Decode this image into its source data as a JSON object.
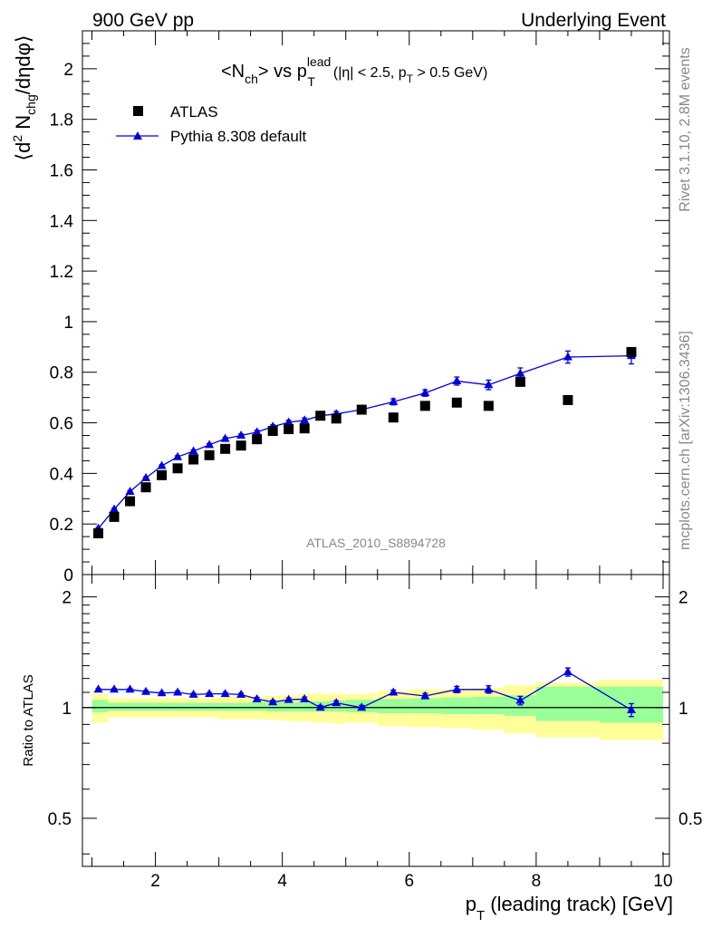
{
  "header": {
    "left": "900 GeV pp",
    "right": "Underlying Event"
  },
  "side_labels": {
    "rivet": "Rivet 3.1.10,  2.8M events",
    "mcplots": "mcplots.cern.ch [arXiv:1306.3436]"
  },
  "watermark": "ATLAS_2010_S8894728",
  "plot_title": {
    "n": "<N",
    "ch": "ch",
    "vs": "> vs p",
    "sup": "lead",
    "sub": "T",
    "cut_a": "(|η| < 2.5, p",
    "cut_b": "T",
    "cut_c": " > 0.5 GeV)"
  },
  "legend": {
    "data": "ATLAS",
    "mc": "Pythia 8.308 default"
  },
  "colors": {
    "data": "#000000",
    "mc": "#0000dd",
    "band_inner": "#99ff99",
    "band_outer": "#ffff99"
  },
  "chart_data": [
    {
      "type": "scatter",
      "panel": "main",
      "xlabel": "p_T (leading track) [GeV]",
      "ylabel": "⟨d² N_chg/dηdφ⟩",
      "xlim": [
        0.85,
        10.1
      ],
      "ylim": [
        0,
        2.15
      ],
      "x_ticks": [
        2,
        4,
        6,
        8,
        10
      ],
      "y_ticks": [
        0,
        0.2,
        0.4,
        0.6,
        0.8,
        1,
        1.2,
        1.4,
        1.6,
        1.8,
        2
      ],
      "y_tick_labels": [
        "0",
        "0.2",
        "0.4",
        "0.6",
        "0.8",
        "1",
        "1.2",
        "1.4",
        "1.6",
        "1.8",
        "2"
      ],
      "series": [
        {
          "name": "ATLAS",
          "x": [
            1.1,
            1.35,
            1.6,
            1.85,
            2.1,
            2.35,
            2.6,
            2.85,
            3.1,
            3.35,
            3.6,
            3.85,
            4.1,
            4.35,
            4.6,
            4.85,
            5.25,
            5.75,
            6.25,
            6.75,
            7.25,
            7.75,
            8.5,
            9.5
          ],
          "y": [
            0.163,
            0.228,
            0.29,
            0.345,
            0.393,
            0.42,
            0.455,
            0.472,
            0.497,
            0.51,
            0.535,
            0.568,
            0.575,
            0.578,
            0.628,
            0.617,
            0.652,
            0.621,
            0.667,
            0.68,
            0.667,
            0.762,
            0.69,
            0.88
          ]
        },
        {
          "name": "Pythia 8.308 default",
          "x": [
            1.1,
            1.35,
            1.6,
            1.85,
            2.1,
            2.35,
            2.6,
            2.85,
            3.1,
            3.35,
            3.6,
            3.85,
            4.1,
            4.35,
            4.6,
            4.85,
            5.25,
            5.75,
            6.25,
            6.75,
            7.25,
            7.75,
            8.5,
            9.5
          ],
          "y": [
            0.182,
            0.258,
            0.328,
            0.382,
            0.43,
            0.465,
            0.488,
            0.513,
            0.537,
            0.55,
            0.563,
            0.585,
            0.602,
            0.61,
            0.628,
            0.635,
            0.652,
            0.683,
            0.718,
            0.765,
            0.75,
            0.795,
            0.86,
            0.865
          ],
          "yerr": [
            0.004,
            0.004,
            0.004,
            0.004,
            0.004,
            0.005,
            0.005,
            0.005,
            0.006,
            0.006,
            0.007,
            0.007,
            0.008,
            0.009,
            0.009,
            0.01,
            0.01,
            0.012,
            0.013,
            0.016,
            0.019,
            0.022,
            0.024,
            0.032
          ]
        }
      ]
    },
    {
      "type": "line",
      "panel": "ratio",
      "ylabel": "Ratio to ATLAS",
      "xlim": [
        0.85,
        10.1
      ],
      "ylim": [
        0.37,
        2.3
      ],
      "y_scale": "log",
      "y_ticks": [
        0.5,
        1,
        2
      ],
      "y_tick_labels": [
        "0.5",
        "1",
        "2"
      ],
      "x_ticks": [
        2,
        4,
        6,
        8,
        10
      ],
      "x_tick_labels": [
        "2",
        "4",
        "6",
        "8",
        "10"
      ],
      "series": [
        {
          "name": "Pythia 8.308 default / ATLAS",
          "x": [
            1.1,
            1.35,
            1.6,
            1.85,
            2.1,
            2.35,
            2.6,
            2.85,
            3.1,
            3.35,
            3.6,
            3.85,
            4.1,
            4.35,
            4.6,
            4.85,
            5.25,
            5.75,
            6.25,
            6.75,
            7.25,
            7.75,
            8.5,
            9.5
          ],
          "y": [
            1.12,
            1.12,
            1.12,
            1.105,
            1.095,
            1.1,
            1.085,
            1.09,
            1.09,
            1.085,
            1.055,
            1.035,
            1.05,
            1.055,
            1.0,
            1.03,
            1.0,
            1.1,
            1.075,
            1.12,
            1.12,
            1.045,
            1.25,
            0.985
          ],
          "yerr": [
            0.008,
            0.008,
            0.008,
            0.008,
            0.008,
            0.009,
            0.009,
            0.009,
            0.01,
            0.01,
            0.011,
            0.011,
            0.012,
            0.013,
            0.013,
            0.014,
            0.014,
            0.016,
            0.018,
            0.022,
            0.026,
            0.028,
            0.032,
            0.04
          ]
        }
      ],
      "bands": {
        "edges": [
          1.0,
          1.25,
          1.5,
          1.75,
          2.0,
          2.25,
          2.5,
          2.75,
          3.0,
          3.25,
          3.5,
          3.75,
          4.0,
          4.25,
          4.5,
          4.75,
          5.0,
          5.5,
          6.0,
          6.5,
          7.0,
          7.5,
          8.0,
          9.0,
          10.0
        ],
        "inner_lo": [
          0.97,
          0.98,
          0.98,
          0.98,
          0.98,
          0.98,
          0.98,
          0.98,
          0.98,
          0.98,
          0.98,
          0.975,
          0.975,
          0.975,
          0.975,
          0.975,
          0.97,
          0.965,
          0.965,
          0.96,
          0.96,
          0.95,
          0.92,
          0.91
        ],
        "inner_hi": [
          1.05,
          1.03,
          1.03,
          1.03,
          1.03,
          1.03,
          1.03,
          1.03,
          1.03,
          1.03,
          1.035,
          1.035,
          1.035,
          1.04,
          1.04,
          1.045,
          1.05,
          1.055,
          1.06,
          1.065,
          1.07,
          1.08,
          1.14,
          1.14
        ],
        "outer_lo": [
          0.91,
          0.94,
          0.94,
          0.94,
          0.94,
          0.94,
          0.94,
          0.94,
          0.93,
          0.93,
          0.93,
          0.925,
          0.92,
          0.915,
          0.91,
          0.905,
          0.91,
          0.89,
          0.885,
          0.88,
          0.87,
          0.85,
          0.83,
          0.815
        ],
        "outer_hi": [
          1.09,
          1.06,
          1.06,
          1.06,
          1.06,
          1.06,
          1.06,
          1.06,
          1.07,
          1.07,
          1.07,
          1.075,
          1.08,
          1.09,
          1.09,
          1.09,
          1.09,
          1.11,
          1.12,
          1.12,
          1.13,
          1.15,
          1.17,
          1.19
        ]
      }
    }
  ]
}
